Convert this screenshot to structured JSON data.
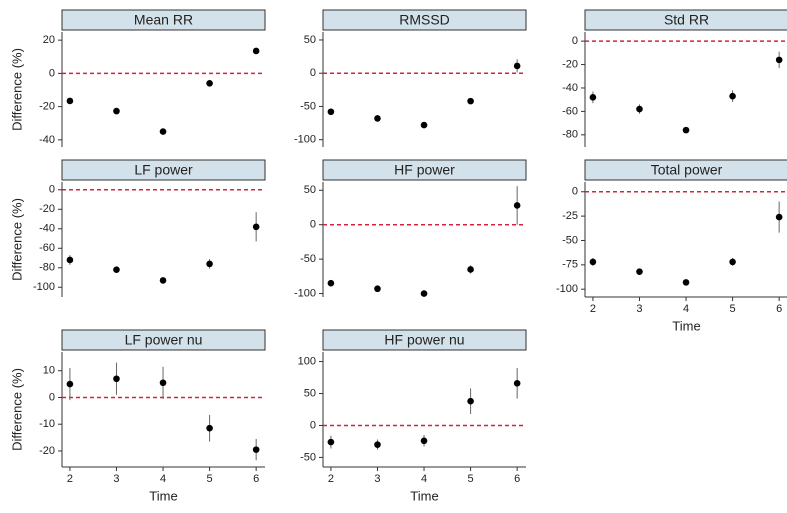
{
  "chart_data": [
    {
      "type": "scatter",
      "title": "Mean RR",
      "ylabel": "Difference (%)",
      "x": [
        2,
        3,
        4,
        5,
        6
      ],
      "values": [
        -16.6,
        -22.7,
        -35,
        -6,
        13.5
      ],
      "errors": [
        1.5,
        1.5,
        1.5,
        1.5,
        1.5
      ],
      "xlim": [
        1.83,
        6.19
      ],
      "ylim": [
        -44.3,
        24.9
      ],
      "yticks": [
        20,
        0,
        -20,
        -40
      ],
      "hline": 0,
      "color": "#000000",
      "hline_color": "#d6213f"
    },
    {
      "type": "scatter",
      "title": "RMSSD",
      "x": [
        2,
        3,
        4,
        5,
        6
      ],
      "values": [
        -58,
        -68,
        -78,
        -42,
        11
      ],
      "errors": [
        2,
        2,
        2,
        2,
        10
      ],
      "xlim": [
        1.83,
        6.19
      ],
      "ylim": [
        -111,
        62
      ],
      "yticks": [
        50,
        0,
        -50,
        -100
      ],
      "hline": 0,
      "color": "#000000",
      "hline_color": "#d6213f"
    },
    {
      "type": "scatter",
      "title": "Std RR",
      "x": [
        2,
        3,
        4,
        5,
        6
      ],
      "values": [
        -48,
        -58,
        -76,
        -47,
        -16
      ],
      "errors": [
        5,
        4,
        1.5,
        5,
        7
      ],
      "xlim": [
        1.83,
        6.19
      ],
      "ylim": [
        -90.4,
        7.8
      ],
      "yticks": [
        0,
        -20,
        -40,
        -60,
        -80
      ],
      "hline": 0,
      "color": "#000000",
      "hline_color": "#d6213f"
    },
    {
      "type": "scatter",
      "title": "LF power",
      "ylabel": "Difference (%)",
      "x": [
        2,
        3,
        4,
        5,
        6
      ],
      "values": [
        -72,
        -82,
        -93,
        -76,
        -38
      ],
      "errors": [
        5,
        3,
        1.5,
        5,
        15
      ],
      "xlim": [
        1.83,
        6.19
      ],
      "ylim": [
        -110,
        8
      ],
      "yticks": [
        0,
        -20,
        -40,
        -60,
        -80,
        -100
      ],
      "hline": 0,
      "color": "#000000",
      "hline_color": "#d6213f"
    },
    {
      "type": "scatter",
      "title": "HF power",
      "x": [
        2,
        3,
        4,
        5,
        6
      ],
      "values": [
        -85,
        -93,
        -100,
        -65,
        28
      ],
      "errors": [
        3,
        3,
        2,
        6,
        28
      ],
      "xlim": [
        1.83,
        6.19
      ],
      "ylim": [
        -105,
        62
      ],
      "yticks": [
        50,
        0,
        -50,
        -100
      ],
      "hline": 0,
      "color": "#000000",
      "hline_color": "#d6213f"
    },
    {
      "type": "scatter",
      "title": "Total power",
      "xlabel": "Time",
      "x": [
        2,
        3,
        4,
        5,
        6
      ],
      "values": [
        -72,
        -82,
        -93,
        -72,
        -26
      ],
      "errors": [
        4,
        3,
        1.5,
        4,
        16
      ],
      "xlim": [
        1.83,
        6.19
      ],
      "ylim": [
        -108,
        10
      ],
      "xticks": [
        2,
        3,
        4,
        5,
        6
      ],
      "yticks": [
        0,
        -25,
        -50,
        -75,
        -100
      ],
      "hline": 0,
      "color": "#000000",
      "hline_color": "#d6213f"
    },
    {
      "type": "scatter",
      "title": "LF power nu",
      "ylabel": "Difference (%)",
      "xlabel": "Time",
      "x": [
        2,
        3,
        4,
        5,
        6
      ],
      "values": [
        5,
        7,
        5.5,
        -11.5,
        -19.5
      ],
      "errors": [
        6,
        6,
        6,
        5,
        4
      ],
      "xlim": [
        1.83,
        6.19
      ],
      "ylim": [
        -26,
        17
      ],
      "xticks": [
        2,
        3,
        4,
        5,
        6
      ],
      "yticks": [
        10,
        0,
        -10,
        -20
      ],
      "hline": 0,
      "color": "#000000",
      "hline_color": "#d6213f"
    },
    {
      "type": "scatter",
      "title": "HF power nu",
      "xlabel": "Time",
      "x": [
        2,
        3,
        4,
        5,
        6
      ],
      "values": [
        -26,
        -30,
        -24,
        38,
        66
      ],
      "errors": [
        10,
        8,
        9,
        20,
        24
      ],
      "xlim": [
        1.83,
        6.19
      ],
      "ylim": [
        -65,
        115
      ],
      "xticks": [
        2,
        3,
        4,
        5,
        6
      ],
      "yticks": [
        100,
        50,
        0,
        -50
      ],
      "hline": 0,
      "color": "#000000",
      "hline_color": "#d6213f"
    }
  ]
}
